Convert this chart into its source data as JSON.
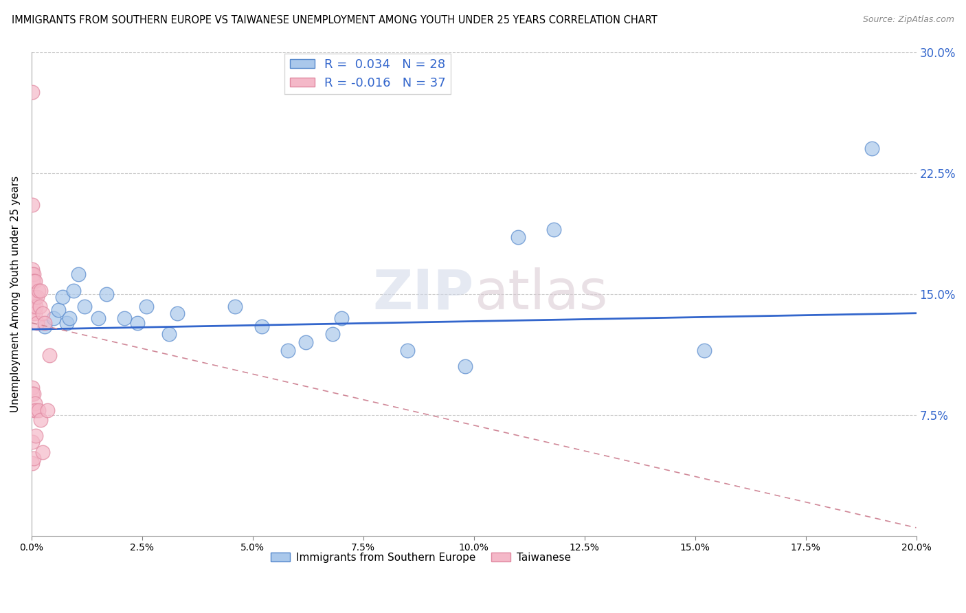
{
  "title": "IMMIGRANTS FROM SOUTHERN EUROPE VS TAIWANESE UNEMPLOYMENT AMONG YOUTH UNDER 25 YEARS CORRELATION CHART",
  "source": "Source: ZipAtlas.com",
  "ylabel": "Unemployment Among Youth under 25 years",
  "xlim": [
    0.0,
    20.0
  ],
  "ylim": [
    0.0,
    30.0
  ],
  "yticks": [
    7.5,
    15.0,
    22.5,
    30.0
  ],
  "xticks": [
    0.0,
    2.5,
    5.0,
    7.5,
    10.0,
    12.5,
    15.0,
    17.5,
    20.0
  ],
  "blue_R": 0.034,
  "blue_N": 28,
  "pink_R": -0.016,
  "pink_N": 37,
  "blue_color": "#aac8eb",
  "pink_color": "#f4b8c8",
  "blue_edge_color": "#5588cc",
  "pink_edge_color": "#e088a0",
  "blue_line_color": "#3366cc",
  "pink_line_color": "#d08898",
  "watermark": "ZIPatlas",
  "legend_label_blue": "Immigrants from Southern Europe",
  "legend_label_pink": "Taiwanese",
  "blue_x": [
    0.3,
    0.5,
    0.6,
    0.7,
    0.8,
    0.85,
    0.95,
    1.05,
    1.2,
    1.5,
    1.7,
    2.1,
    2.4,
    2.6,
    3.1,
    3.3,
    4.6,
    5.2,
    5.8,
    6.2,
    6.8,
    7.0,
    8.5,
    9.8,
    11.0,
    11.8,
    15.2,
    19.0
  ],
  "blue_y": [
    13.0,
    13.5,
    14.0,
    14.8,
    13.2,
    13.5,
    15.2,
    16.2,
    14.2,
    13.5,
    15.0,
    13.5,
    13.2,
    14.2,
    12.5,
    13.8,
    14.2,
    13.0,
    11.5,
    12.0,
    12.5,
    13.5,
    11.5,
    10.5,
    18.5,
    19.0,
    11.5,
    24.0
  ],
  "pink_x": [
    0.02,
    0.02,
    0.02,
    0.02,
    0.02,
    0.02,
    0.02,
    0.02,
    0.02,
    0.02,
    0.02,
    0.02,
    0.05,
    0.05,
    0.05,
    0.05,
    0.05,
    0.05,
    0.08,
    0.08,
    0.08,
    0.08,
    0.1,
    0.1,
    0.1,
    0.12,
    0.12,
    0.15,
    0.15,
    0.18,
    0.2,
    0.2,
    0.25,
    0.25,
    0.3,
    0.35,
    0.4
  ],
  "pink_y": [
    27.5,
    20.5,
    16.5,
    16.2,
    15.8,
    14.8,
    13.8,
    14.2,
    9.2,
    8.8,
    5.8,
    4.5,
    16.2,
    15.8,
    14.2,
    8.8,
    7.8,
    4.8,
    15.8,
    14.8,
    13.8,
    8.2,
    14.2,
    7.8,
    6.2,
    14.8,
    13.2,
    15.2,
    7.8,
    14.2,
    15.2,
    7.2,
    13.8,
    5.2,
    13.2,
    7.8,
    11.2
  ],
  "blue_trendline_x0": 0.0,
  "blue_trendline_y0": 12.8,
  "blue_trendline_x1": 20.0,
  "blue_trendline_y1": 13.8,
  "pink_trendline_x0": 0.0,
  "pink_trendline_y0": 13.2,
  "pink_trendline_x1": 20.0,
  "pink_trendline_y1": 0.5
}
